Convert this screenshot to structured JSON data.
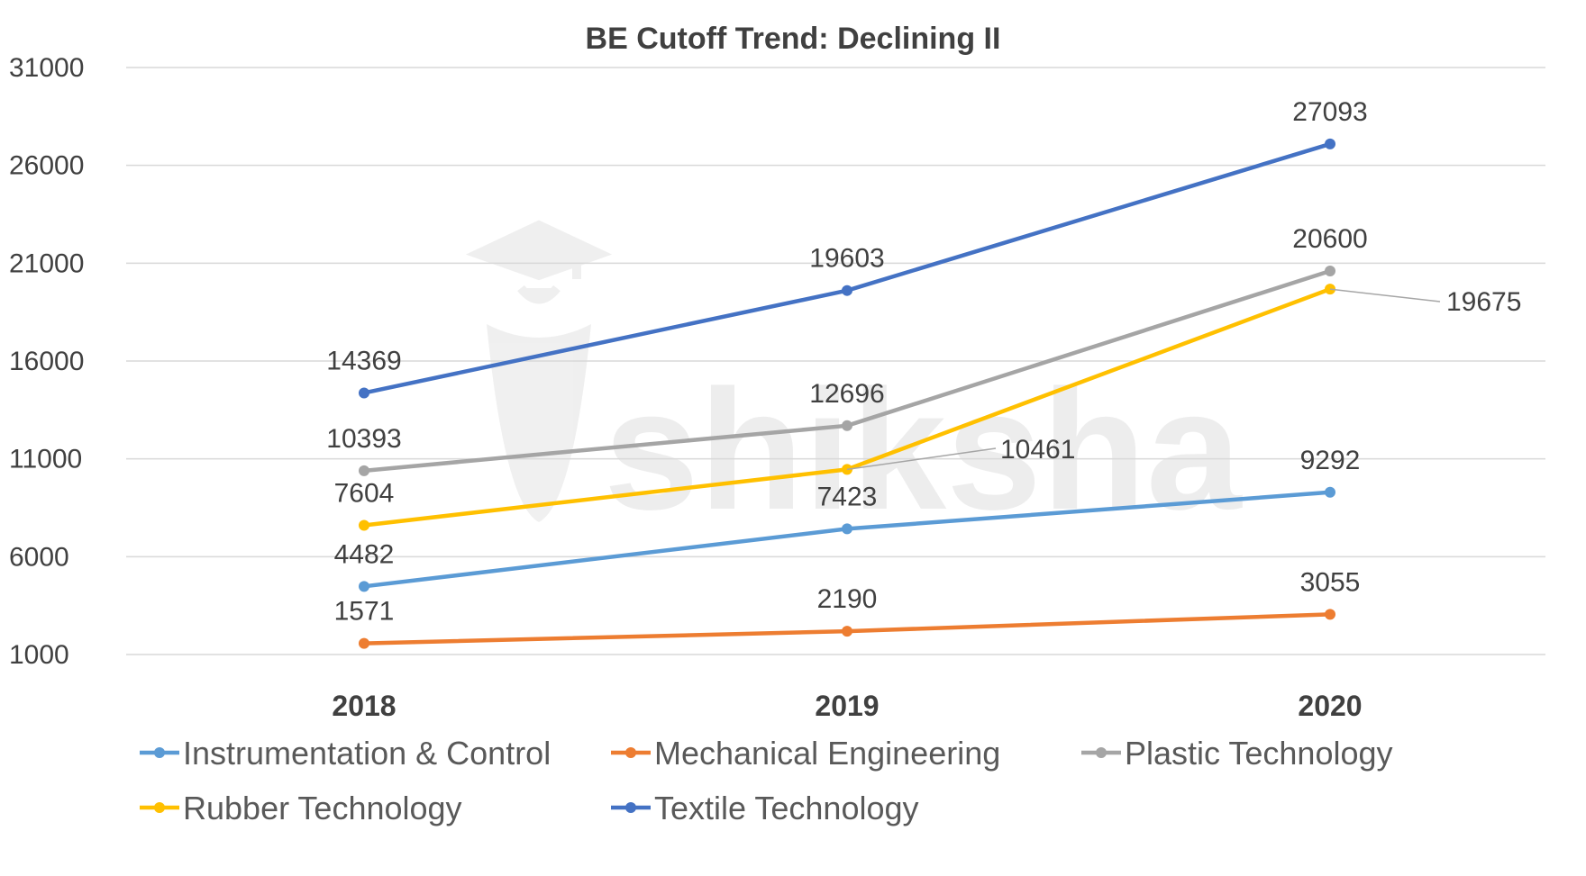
{
  "chart_data": {
    "type": "line",
    "title": "BE Cutoff Trend: Declining II",
    "xlabel": "",
    "ylabel": "",
    "categories": [
      "2018",
      "2019",
      "2020"
    ],
    "ylim": [
      1000,
      31000
    ],
    "yticks": [
      1000,
      6000,
      11000,
      16000,
      21000,
      26000,
      31000
    ],
    "grid": true,
    "legend_position": "bottom",
    "series": [
      {
        "name": "Instrumentation & Control",
        "color": "#5B9BD5",
        "values": [
          4482,
          7423,
          9292
        ]
      },
      {
        "name": "Mechanical Engineering",
        "color": "#ED7D31",
        "values": [
          1571,
          2190,
          3055
        ]
      },
      {
        "name": "Plastic Technology",
        "color": "#A5A5A5",
        "values": [
          10393,
          12696,
          20600
        ]
      },
      {
        "name": "Rubber Technology",
        "color": "#FFC000",
        "values": [
          7604,
          10461,
          19675
        ]
      },
      {
        "name": "Textile Technology",
        "color": "#4472C4",
        "values": [
          14369,
          19603,
          27093
        ]
      }
    ]
  },
  "watermark": {
    "text": "shiksha",
    "icon": "graduation-cap-icon"
  }
}
